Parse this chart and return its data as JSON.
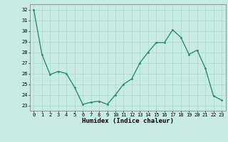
{
  "x": [
    0,
    1,
    2,
    3,
    4,
    5,
    6,
    7,
    8,
    9,
    10,
    11,
    12,
    13,
    14,
    15,
    16,
    17,
    18,
    19,
    20,
    21,
    22,
    23
  ],
  "y": [
    32,
    27.8,
    25.9,
    26.2,
    26.0,
    24.7,
    23.1,
    23.3,
    23.4,
    23.1,
    24.0,
    25.0,
    25.5,
    27.0,
    28.0,
    28.9,
    28.9,
    30.1,
    29.4,
    27.8,
    28.2,
    26.5,
    23.9,
    23.5
  ],
  "line_color": "#2e8b74",
  "marker": "o",
  "markersize": 1.5,
  "linewidth": 1.0,
  "bg_color": "#c8ebe6",
  "grid_color": "#a0d4ce",
  "xlabel": "Humidex (Indice chaleur)",
  "ylim": [
    22.5,
    32.5
  ],
  "xlim": [
    -0.5,
    23.5
  ],
  "yticks": [
    23,
    24,
    25,
    26,
    27,
    28,
    29,
    30,
    31,
    32
  ],
  "xticks": [
    0,
    1,
    2,
    3,
    4,
    5,
    6,
    7,
    8,
    9,
    10,
    11,
    12,
    13,
    14,
    15,
    16,
    17,
    18,
    19,
    20,
    21,
    22,
    23
  ],
  "tick_fontsize": 5.0,
  "xlabel_fontsize": 6.5
}
